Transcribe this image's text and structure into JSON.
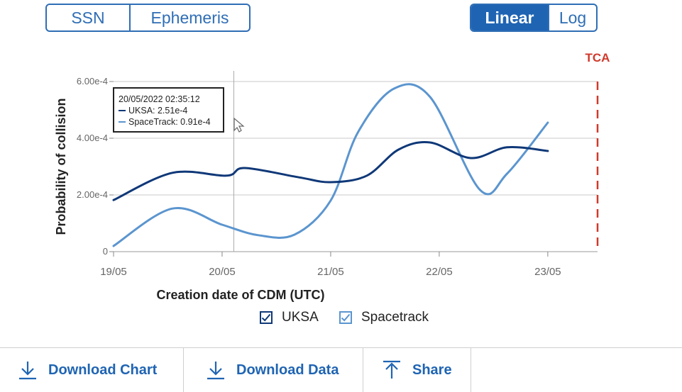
{
  "toggles": {
    "source": [
      "SSN",
      "Ephemeris"
    ],
    "scale": [
      "Linear",
      "Log"
    ],
    "scale_active": "Linear"
  },
  "tca_label": "TCA",
  "tooltip": {
    "date": "20/05/2022 02:35:12",
    "uksa": "UKSA: 2.51e-4",
    "spacetrack": "SpaceTrack: 0.91e-4"
  },
  "legend": [
    {
      "label": "UKSA",
      "color": "#0f3878"
    },
    {
      "label": "Spacetrack",
      "color": "#5b95cf"
    }
  ],
  "actions": {
    "download_chart": "Download Chart",
    "download_data": "Download Data",
    "share": "Share"
  },
  "chart_data": {
    "type": "line",
    "xlabel": "Creation date of CDM (UTC)",
    "ylabel": "Probability of collision",
    "x_ticks": [
      "19/05",
      "20/05",
      "21/05",
      "22/05",
      "23/05"
    ],
    "y_ticks": [
      "0",
      "2.00e-4",
      "4.00e-4",
      "6.00e-4"
    ],
    "ylim": [
      0,
      0.0006
    ],
    "xlim": [
      "19/05",
      "23/05 11:00"
    ],
    "grid": true,
    "tca": "23/05 11:00",
    "series": [
      {
        "name": "UKSA",
        "color": "#0f3878",
        "x": [
          "19/05 00:00",
          "19/05 13:00",
          "20/05 01:00",
          "20/05 05:00",
          "20/05 17:00",
          "21/05 00:00",
          "21/05 08:00",
          "21/05 15:00",
          "21/05 22:00",
          "22/05 07:00",
          "22/05 15:00",
          "23/05 00:00"
        ],
        "y": [
          0.000182,
          0.000278,
          0.000268,
          0.000295,
          0.000262,
          0.000245,
          0.000268,
          0.00036,
          0.000385,
          0.00033,
          0.000368,
          0.000355
        ]
      },
      {
        "name": "Spacetrack",
        "color": "#5b95cf",
        "x": [
          "19/05 00:00",
          "19/05 13:00",
          "20/05 00:00",
          "20/05 08:00",
          "20/05 16:00",
          "21/05 00:00",
          "21/05 06:00",
          "21/05 14:00",
          "21/05 22:00",
          "22/05 09:00",
          "22/05 15:00",
          "23/05 00:00"
        ],
        "y": [
          2e-05,
          0.000152,
          9.5e-05,
          5.8e-05,
          6e-05,
          0.00018,
          0.00042,
          0.000575,
          0.000545,
          0.000218,
          0.000275,
          0.000455
        ]
      }
    ]
  }
}
